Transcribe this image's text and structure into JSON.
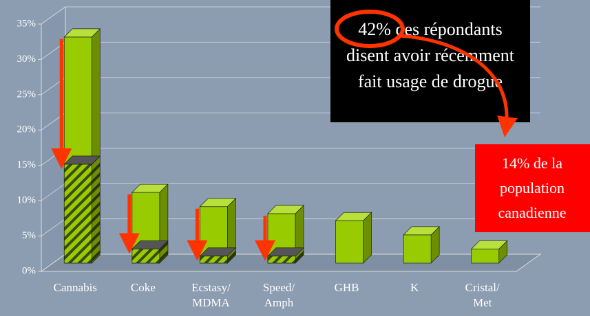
{
  "chart_data": {
    "type": "bar3d",
    "categories": [
      "Cannabis",
      "Coke",
      "Ecstasy/ MDMA",
      "Speed/ Amph",
      "GHB",
      "K",
      "Cristal/ Met"
    ],
    "series": [
      {
        "color": "#99cc00",
        "values": [
          32,
          10,
          8,
          7,
          6,
          4,
          2
        ]
      },
      {
        "color": "#99cc00",
        "pattern": "hatched",
        "values": [
          14,
          2,
          1,
          1,
          null,
          null,
          null
        ]
      }
    ],
    "ylim": [
      0,
      35
    ],
    "yticks": [
      {
        "value": 0,
        "label": "0%"
      },
      {
        "value": 5,
        "label": "5%"
      },
      {
        "value": 10,
        "label": "10%"
      },
      {
        "value": 15,
        "label": "15%"
      },
      {
        "value": 20,
        "label": "20%"
      },
      {
        "value": 25,
        "label": "25%"
      },
      {
        "value": 30,
        "label": "30%"
      },
      {
        "value": 35,
        "label": "35%"
      }
    ],
    "grid": true,
    "annotations": [
      {
        "lines": [
          "42% des répondants",
          "disent avoir récemment",
          "fait usage de drogue"
        ]
      },
      {
        "lines": [
          "14% de la",
          "population",
          "canadienne"
        ]
      }
    ]
  }
}
